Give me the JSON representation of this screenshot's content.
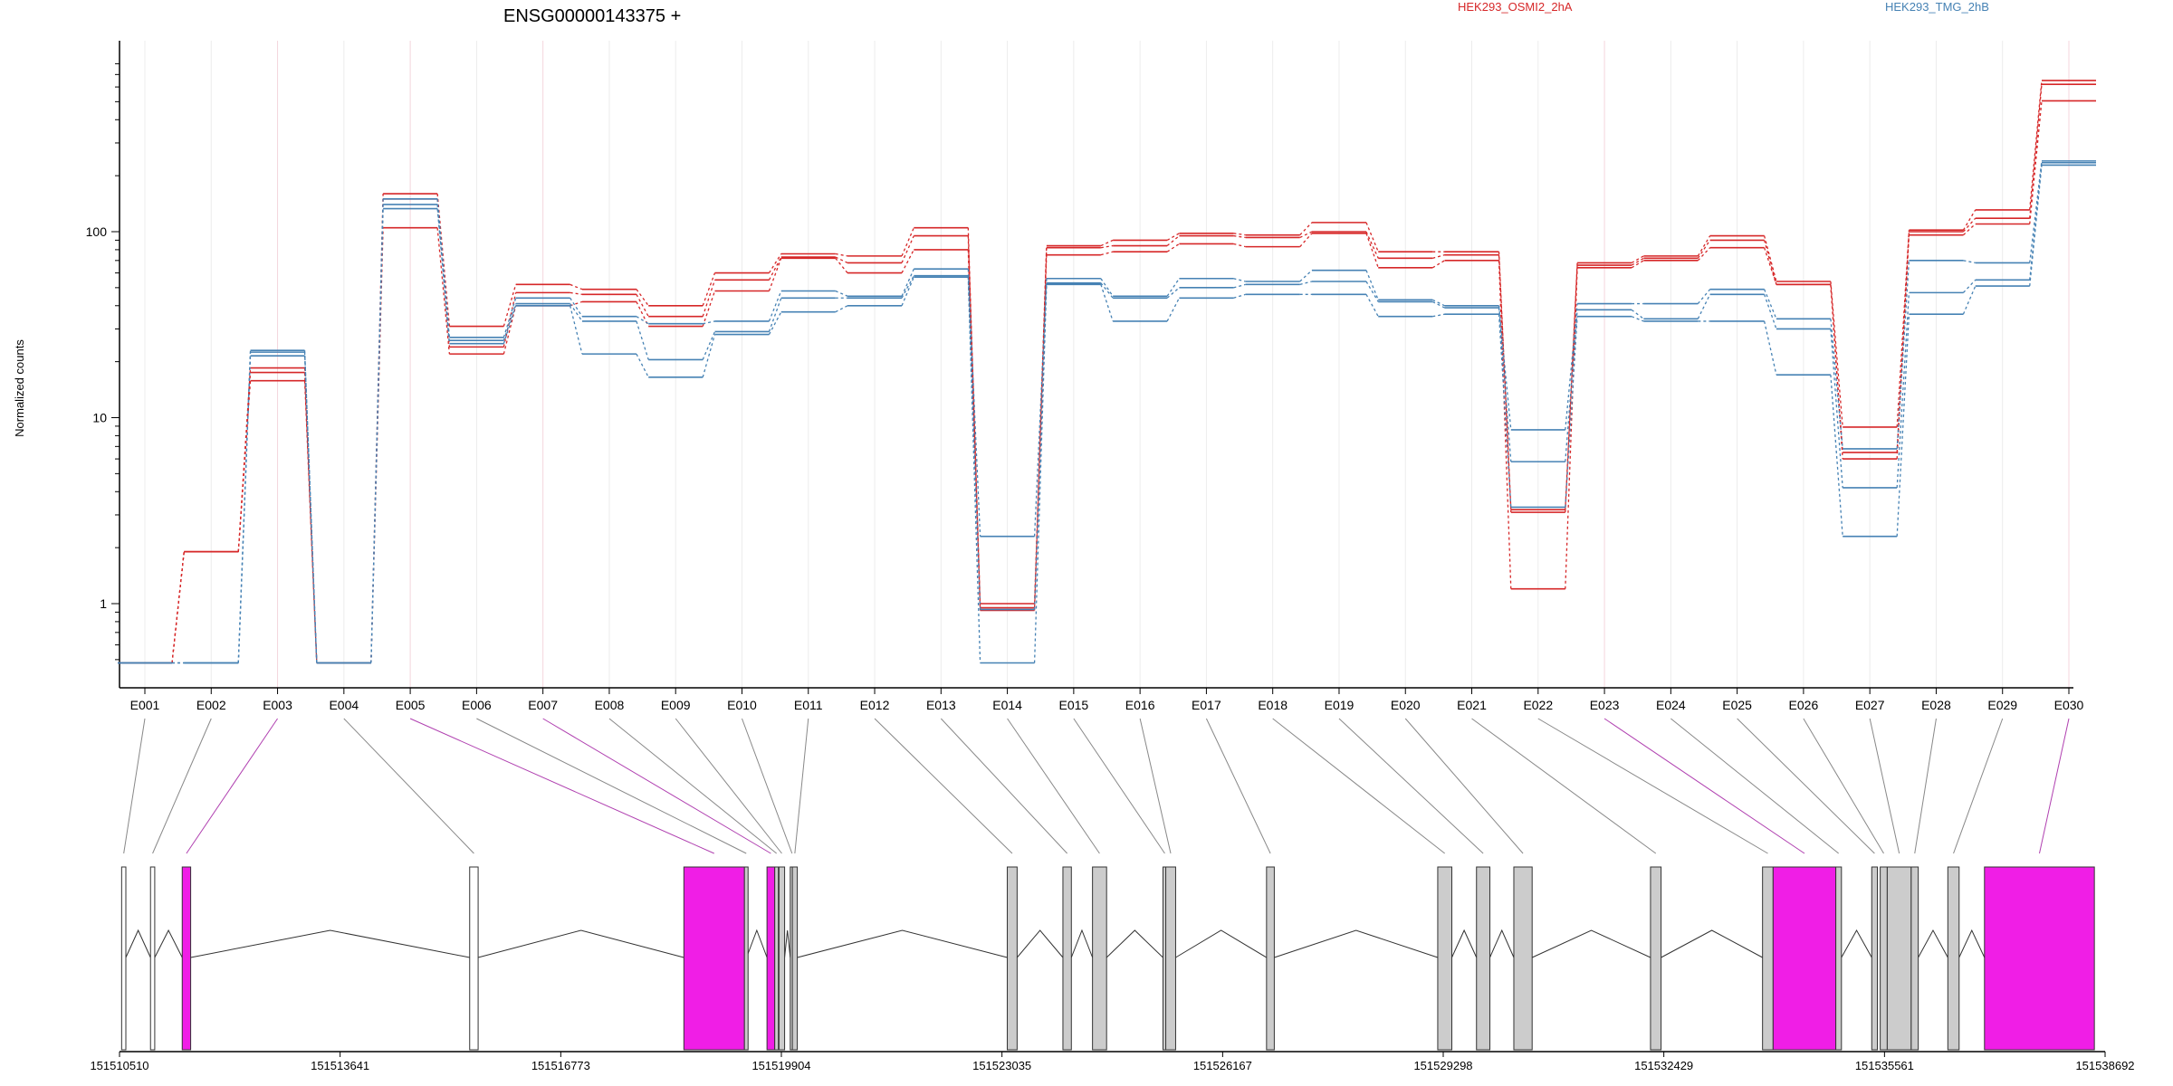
{
  "chart_data": {
    "type": "line",
    "title": "ENSG00000143375 +",
    "xlabel": "",
    "ylabel": "Normalized counts",
    "yscale": "log",
    "ylim": [
      0.45,
      850
    ],
    "grid": "vertical, per exon",
    "legend_position": "top",
    "yticks": [
      1,
      10,
      100
    ],
    "ytick_labels": [
      "1",
      "10",
      "100"
    ],
    "categories": [
      "E001",
      "E002",
      "E003",
      "E004",
      "E005",
      "E006",
      "E007",
      "E008",
      "E009",
      "E010",
      "E011",
      "E012",
      "E013",
      "E014",
      "E015",
      "E016",
      "E017",
      "E018",
      "E019",
      "E020",
      "E021",
      "E022",
      "E023",
      "E024",
      "E025",
      "E026",
      "E027",
      "E028",
      "E029",
      "E030"
    ],
    "colors": {
      "HEK293_OSMI2_2hA": "#d62728",
      "HEK293_TMG_2hB": "#4682b4",
      "highlight": "#f01ee6",
      "exon": "#cccccc"
    },
    "series": [
      {
        "name": "HEK293_OSMI2_2hA",
        "values": [
          0.48,
          1.9,
          17.5,
          0.48,
          160,
          31,
          52,
          49,
          40,
          60,
          76,
          74,
          105,
          1.0,
          84,
          90,
          98,
          96,
          112,
          78,
          78,
          3.2,
          68,
          74,
          95,
          54,
          8.9,
          102,
          131,
          650
        ]
      },
      {
        "name": "HEK293_OSMI2_2hA",
        "values": [
          0.48,
          1.9,
          15.8,
          0.48,
          150,
          24,
          47,
          46,
          35,
          55,
          73,
          68,
          95,
          0.95,
          82,
          84,
          95,
          93,
          100,
          72,
          75,
          3.1,
          66,
          72,
          90,
          52,
          6.5,
          100,
          118,
          620
        ]
      },
      {
        "name": "HEK293_OSMI2_2hA",
        "values": [
          0.48,
          1.9,
          18.5,
          0.48,
          105,
          22,
          40,
          42,
          31,
          48,
          72,
          60,
          80,
          0.92,
          75,
          78,
          86,
          83,
          98,
          64,
          70,
          1.2,
          64,
          70,
          82,
          52,
          6.0,
          96,
          110,
          505
        ]
      },
      {
        "name": "HEK293_TMG_2hB",
        "values": [
          0.48,
          0.48,
          23,
          0.48,
          150,
          27,
          44,
          35,
          32,
          33,
          48,
          45,
          63,
          2.3,
          56,
          45,
          56,
          54,
          62,
          43,
          40,
          8.6,
          41,
          41,
          49,
          34,
          6.8,
          70,
          68,
          240
        ]
      },
      {
        "name": "HEK293_TMG_2hB",
        "values": [
          0.48,
          0.48,
          21.5,
          0.48,
          140,
          26,
          41,
          33,
          20.5,
          29,
          44,
          44,
          58,
          0.93,
          53,
          44,
          50,
          52,
          54,
          42,
          39,
          5.8,
          38,
          34,
          46,
          30,
          4.2,
          47,
          55,
          235
        ]
      },
      {
        "name": "HEK293_TMG_2hB",
        "values": [
          0.48,
          0.48,
          22.5,
          0.48,
          133,
          25,
          40,
          22,
          16.5,
          28,
          37,
          40,
          57,
          0.48,
          52,
          33,
          44,
          46,
          46,
          35,
          36,
          3.3,
          35,
          33,
          33,
          17,
          2.3,
          36,
          51,
          228
        ]
      }
    ],
    "gene_model": {
      "start": 151510510,
      "end": 151538692,
      "axis_ticks": [
        151510510,
        151513641,
        151516773,
        151519904,
        151523035,
        151526167,
        151529298,
        151532429,
        151535561,
        151538692
      ],
      "exon_labels": [
        {
          "id": "E001",
          "start": 151510540,
          "end": 151510600,
          "highlight": false,
          "empty": true
        },
        {
          "id": "E002",
          "start": 151510950,
          "end": 151511010,
          "highlight": false,
          "empty": true
        },
        {
          "id": "E003",
          "start": 151511400,
          "end": 151511520,
          "highlight": true,
          "empty": false
        },
        {
          "id": "E004",
          "start": 151515480,
          "end": 151515600,
          "highlight": false,
          "empty": true
        },
        {
          "id": "E005",
          "start": 151518520,
          "end": 151519380,
          "highlight": true,
          "empty": false
        },
        {
          "id": "E006",
          "start": 151519380,
          "end": 151519410,
          "highlight": false,
          "empty": false
        },
        {
          "id": "E007",
          "start": 151519700,
          "end": 151519810,
          "highlight": true,
          "empty": false
        },
        {
          "id": "E008",
          "start": 151519810,
          "end": 151519840,
          "highlight": false,
          "empty": false
        },
        {
          "id": "E009",
          "start": 151519870,
          "end": 151519950,
          "highlight": false,
          "empty": false
        },
        {
          "id": "E010",
          "start": 151520030,
          "end": 151520060,
          "highlight": false,
          "empty": false
        },
        {
          "id": "E011",
          "start": 151520060,
          "end": 151520130,
          "highlight": false,
          "empty": false
        },
        {
          "id": "E012",
          "start": 151523110,
          "end": 151523250,
          "highlight": false,
          "empty": false
        },
        {
          "id": "E013",
          "start": 151523900,
          "end": 151524020,
          "highlight": false,
          "empty": false
        },
        {
          "id": "E014",
          "start": 151524320,
          "end": 151524520,
          "highlight": false,
          "empty": false
        },
        {
          "id": "E015",
          "start": 151525320,
          "end": 151525360,
          "highlight": false,
          "empty": false
        },
        {
          "id": "E016",
          "start": 151525360,
          "end": 151525500,
          "highlight": false,
          "empty": false
        },
        {
          "id": "E017",
          "start": 151526790,
          "end": 151526900,
          "highlight": false,
          "empty": false
        },
        {
          "id": "E018",
          "start": 151529220,
          "end": 151529420,
          "highlight": false,
          "empty": false
        },
        {
          "id": "E019",
          "start": 151529770,
          "end": 151529960,
          "highlight": false,
          "empty": false
        },
        {
          "id": "E020",
          "start": 151530300,
          "end": 151530560,
          "highlight": false,
          "empty": false
        },
        {
          "id": "E021",
          "start": 151532240,
          "end": 151532390,
          "highlight": false,
          "empty": false
        },
        {
          "id": "E022",
          "start": 151533830,
          "end": 151533980,
          "highlight": false,
          "empty": false
        },
        {
          "id": "E023",
          "start": 151533980,
          "end": 151534870,
          "highlight": true,
          "empty": false
        },
        {
          "id": "E024",
          "start": 151534870,
          "end": 151534950,
          "highlight": false,
          "empty": false
        },
        {
          "id": "E025",
          "start": 151535380,
          "end": 151535460,
          "highlight": false,
          "empty": false
        },
        {
          "id": "E026",
          "start": 151535500,
          "end": 151535600,
          "highlight": false,
          "empty": false
        },
        {
          "id": "E027",
          "start": 151535600,
          "end": 151535940,
          "highlight": false,
          "empty": false
        },
        {
          "id": "E028",
          "start": 151535940,
          "end": 151536040,
          "highlight": false,
          "empty": false
        },
        {
          "id": "E029",
          "start": 151536460,
          "end": 151536620,
          "highlight": false,
          "empty": false
        },
        {
          "id": "E030",
          "start": 151536980,
          "end": 151538540,
          "highlight": true,
          "empty": false
        }
      ]
    }
  }
}
